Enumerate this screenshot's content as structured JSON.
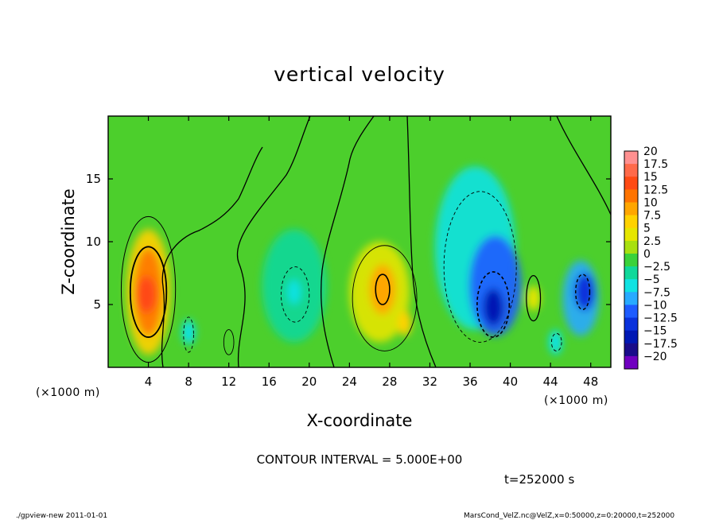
{
  "chart_data": {
    "type": "heatmap",
    "title": "vertical velocity",
    "xlabel": "X-coordinate",
    "ylabel": "Z-coordinate",
    "x_unit_left": "(×1000 m)",
    "x_unit_right": "(×1000 m)",
    "xlim": [
      0,
      50
    ],
    "ylim": [
      0,
      20
    ],
    "xticks": [
      4,
      8,
      12,
      16,
      20,
      24,
      28,
      32,
      36,
      40,
      44,
      48
    ],
    "yticks": [
      5,
      10,
      15
    ],
    "colorbar": {
      "labels": [
        "20",
        "17.5",
        "15",
        "12.5",
        "10",
        "7.5",
        "5",
        "2.5",
        "0",
        "−2.5",
        "−5",
        "−7.5",
        "−10",
        "−12.5",
        "−15",
        "−17.5",
        "−20"
      ],
      "levels": [
        20,
        17.5,
        15,
        12.5,
        10,
        7.5,
        5,
        2.5,
        0,
        -2.5,
        -5,
        -7.5,
        -10,
        -12.5,
        -15,
        -17.5,
        -20
      ],
      "colors": [
        "#ff9090",
        "#ff6a4a",
        "#ff4a14",
        "#ff7400",
        "#ffa600",
        "#ffd200",
        "#e6e600",
        "#a8e010",
        "#3ad23a",
        "#10d89a",
        "#10e2e2",
        "#28aaff",
        "#1e5cff",
        "#0a32dc",
        "#0018b4",
        "#1a0c8a",
        "#7000c0"
      ]
    },
    "features": [
      {
        "x": 3.8,
        "z": 5.8,
        "value": 14
      },
      {
        "x": 27.2,
        "z": 6.2,
        "value": 11
      },
      {
        "x": 29.5,
        "z": 3.5,
        "value": 7
      },
      {
        "x": 38.3,
        "z": 4.8,
        "value": -15
      },
      {
        "x": 47.4,
        "z": 6.0,
        "value": -12
      },
      {
        "x": 18.5,
        "z": 6.0,
        "value": -6
      },
      {
        "x": 8.0,
        "z": 2.8,
        "value": -4
      },
      {
        "x": 44.5,
        "z": 2.0,
        "value": -6
      },
      {
        "x": 42.3,
        "z": 5.5,
        "value": 4
      }
    ],
    "contour_interval_text": "CONTOUR INTERVAL = 5.000E+00",
    "time_label": "t=252000 s"
  },
  "footer": {
    "left": "./gpview-new   2011-01-01",
    "right": "MarsCond_VelZ.nc@VelZ,x=0:50000,z=0:20000,t=252000"
  }
}
